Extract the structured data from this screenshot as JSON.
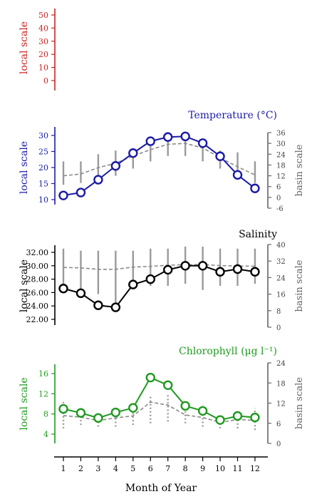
{
  "chart_data": [
    {
      "type": "line",
      "title": "",
      "ylabel": "local scale",
      "ylabel_right": "",
      "ylim": [
        0,
        50
      ],
      "yticks": [
        0,
        10,
        20,
        30,
        40,
        50
      ],
      "color": "#cc2222",
      "series": []
    },
    {
      "type": "line",
      "title": "Temperature (°C)",
      "ylabel": "local scale",
      "ylabel_right": "basin scale",
      "color": "#1a1aa6",
      "ylim": [
        10,
        30
      ],
      "yticks": [
        10,
        15,
        20,
        25,
        30
      ],
      "ylim_right": [
        -6,
        36
      ],
      "yticks_right": [
        -6,
        0,
        6,
        12,
        18,
        24,
        30,
        36
      ],
      "x": [
        1,
        2,
        3,
        4,
        5,
        6,
        7,
        8,
        9,
        10,
        11,
        12
      ],
      "series": [
        {
          "values": [
            11.3,
            12.2,
            16.2,
            20.5,
            24.5,
            28.2,
            29.5,
            29.7,
            27.6,
            23.5,
            17.7,
            13.5
          ]
        }
      ],
      "basin_median": [
        12,
        13,
        16.5,
        19,
        23,
        26.5,
        29.5,
        30,
        27.5,
        22,
        17,
        12.5
      ],
      "basin_range": [
        [
          7,
          20
        ],
        [
          8,
          20
        ],
        [
          9,
          24
        ],
        [
          12,
          26
        ],
        [
          16,
          27
        ],
        [
          20,
          28.5
        ],
        [
          23,
          31.5
        ],
        [
          23,
          32
        ],
        [
          20,
          31
        ],
        [
          16,
          26
        ],
        [
          11,
          25
        ],
        [
          8,
          20
        ]
      ]
    },
    {
      "type": "line",
      "title": "Salinity",
      "ylabel": "local scale",
      "ylabel_right": "basin scale",
      "color": "#000000",
      "ylim": [
        22,
        32
      ],
      "yticks": [
        22.0,
        24.0,
        26.0,
        28.0,
        30.0,
        32.0
      ],
      "ylim_right": [
        0,
        40
      ],
      "yticks_right": [
        0,
        8,
        16,
        24,
        32,
        40
      ],
      "x": [
        1,
        2,
        3,
        4,
        5,
        6,
        7,
        8,
        9,
        10,
        11,
        12
      ],
      "series": [
        {
          "values": [
            26.6,
            25.9,
            24.1,
            23.8,
            27.2,
            28.0,
            29.4,
            30.0,
            30.0,
            29.1,
            29.5,
            29.1
          ]
        }
      ],
      "basin_median": [
        28.9,
        28.7,
        28.0,
        28.0,
        29.1,
        29.4,
        30.0,
        30.2,
        30.3,
        29.8,
        29.6,
        29.5
      ],
      "basin_range": [
        [
          18,
          38
        ],
        [
          18,
          37
        ],
        [
          16,
          37
        ],
        [
          10,
          37
        ],
        [
          19,
          37
        ],
        [
          20,
          38
        ],
        [
          20,
          38
        ],
        [
          21,
          39
        ],
        [
          18,
          39
        ],
        [
          20,
          38
        ],
        [
          20,
          38
        ],
        [
          21,
          38
        ]
      ]
    },
    {
      "type": "line",
      "title": "Chlorophyll (μg l⁻¹)",
      "ylabel": "local scale",
      "ylabel_right": "basin scale",
      "color": "#1e9a1e",
      "ylim": [
        4,
        16
      ],
      "yticks": [
        4,
        8,
        12,
        16
      ],
      "ylim_right": [
        0,
        24
      ],
      "yticks_right": [
        0,
        6,
        12,
        18,
        24
      ],
      "x": [
        1,
        2,
        3,
        4,
        5,
        6,
        7,
        8,
        9,
        10,
        11,
        12
      ],
      "xlabel": "Month of Year",
      "xticks": [
        "1",
        "2",
        "3",
        "4",
        "5",
        "6",
        "7",
        "8",
        "9",
        "10",
        "11",
        "12"
      ],
      "series": [
        {
          "values": [
            9.0,
            8.2,
            7.2,
            8.3,
            9.2,
            15.2,
            13.7,
            9.6,
            8.6,
            6.8,
            7.6,
            7.3
          ]
        }
      ],
      "basin_median": [
        8.3,
        7.8,
        6.8,
        7.6,
        8.2,
        12.3,
        11.4,
        8.5,
        7.7,
        6.3,
        7.1,
        6.9
      ],
      "basin_range": [
        [
          4.5,
          12.5
        ],
        [
          5.5,
          10
        ],
        [
          5.0,
          8.5
        ],
        [
          5.0,
          10.5
        ],
        [
          5.5,
          10.5
        ],
        [
          6.0,
          14.5
        ],
        [
          6.5,
          14.5
        ],
        [
          6.0,
          11.5
        ],
        [
          5.0,
          11.5
        ],
        [
          4.5,
          8.5
        ],
        [
          4.5,
          9.0
        ],
        [
          4.0,
          10.5
        ]
      ]
    }
  ]
}
